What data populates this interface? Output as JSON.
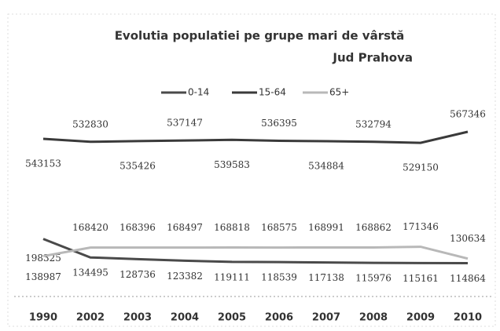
{
  "chart_data": {
    "type": "line",
    "title": "Evolutia populatiei pe grupe mari de vârstă",
    "subtitle": "Jud Prahova",
    "categories": [
      "1990",
      "2002",
      "2003",
      "2004",
      "2005",
      "2006",
      "2007",
      "2008",
      "2009",
      "2010"
    ],
    "series": [
      {
        "name": "0-14",
        "color": "#4a4a4a",
        "values": [
          198325,
          134495,
          128736,
          123382,
          119111,
          118539,
          117138,
          115976,
          115161,
          114864
        ]
      },
      {
        "name": "15-64",
        "color": "#3a3a3a",
        "values": [
          543153,
          532830,
          535426,
          537147,
          539583,
          536395,
          534884,
          532794,
          529150,
          567346
        ]
      },
      {
        "name": "65+",
        "color": "#b8b8b8",
        "values": [
          138987,
          168420,
          168396,
          168497,
          168818,
          168575,
          168991,
          168862,
          171346,
          130634
        ]
      }
    ],
    "legend": "top"
  }
}
